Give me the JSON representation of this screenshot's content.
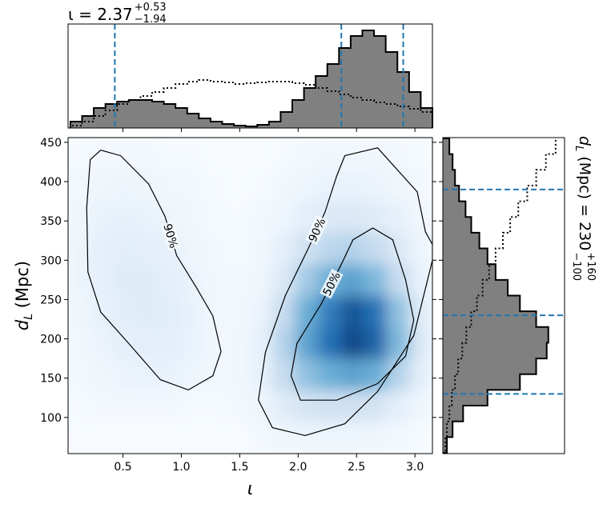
{
  "chart_data": {
    "type": "histogram2d",
    "title": {
      "main": "ι = 2.37",
      "sup": "+0.53",
      "sub": "−1.94"
    },
    "x_label": "ι",
    "y_label": {
      "main": "d",
      "sub": "L",
      "rest": " (Mpc)"
    },
    "right_label": {
      "main": "d",
      "main_sub": "L",
      "rest": " (Mpc) = 230",
      "sup": "+160",
      "sub": "−100"
    },
    "xlim": [
      0.03,
      3.15
    ],
    "ylim": [
      54,
      456
    ],
    "xticks": [
      0.5,
      {
        "value": 1,
        "label": "1.0"
      },
      1.5,
      {
        "value": 2,
        "label": "2.0"
      },
      2.5,
      {
        "value": 3,
        "label": "3.0"
      }
    ],
    "yticks": [
      100,
      150,
      200,
      250,
      300,
      350,
      400,
      450
    ],
    "heatmap": {
      "colors": [
        "#f7fbff",
        "#c6dbef",
        "#6baed6",
        "#2171b5",
        "#08306b"
      ],
      "zlim": [
        0,
        100
      ],
      "x_edges": [
        0.03,
        0.225,
        0.42,
        0.615,
        0.81,
        1.005,
        1.2,
        1.395,
        1.59,
        1.785,
        1.98,
        2.175,
        2.37,
        2.565,
        2.76,
        2.955,
        3.15
      ],
      "y_edges": [
        55,
        95,
        135,
        175,
        215,
        255,
        295,
        335,
        375,
        415,
        455
      ],
      "values": [
        [
          0,
          0,
          0,
          0,
          0,
          0,
          0,
          0,
          2,
          4,
          5,
          5,
          5,
          4,
          2,
          1
        ],
        [
          1,
          2,
          2,
          2,
          2,
          1,
          1,
          2,
          5,
          12,
          18,
          20,
          20,
          18,
          10,
          4
        ],
        [
          2,
          4,
          6,
          7,
          7,
          5,
          3,
          3,
          8,
          25,
          40,
          50,
          55,
          50,
          30,
          10
        ],
        [
          3,
          6,
          9,
          10,
          10,
          7,
          3,
          3,
          8,
          30,
          55,
          75,
          90,
          80,
          45,
          15
        ],
        [
          4,
          8,
          11,
          12,
          11,
          7,
          3,
          2,
          6,
          25,
          50,
          70,
          85,
          75,
          40,
          12
        ],
        [
          5,
          9,
          12,
          12,
          10,
          6,
          2,
          2,
          4,
          15,
          35,
          50,
          55,
          45,
          25,
          8
        ],
        [
          5,
          9,
          11,
          10,
          8,
          4,
          2,
          1,
          3,
          10,
          20,
          28,
          30,
          25,
          15,
          5
        ],
        [
          4,
          7,
          8,
          7,
          5,
          3,
          1,
          1,
          2,
          5,
          10,
          14,
          15,
          12,
          8,
          3
        ],
        [
          3,
          4,
          5,
          4,
          3,
          2,
          1,
          0,
          1,
          3,
          5,
          7,
          7,
          6,
          4,
          2
        ],
        [
          1,
          2,
          2,
          2,
          1,
          1,
          0,
          0,
          0,
          1,
          2,
          3,
          3,
          3,
          2,
          1
        ]
      ]
    },
    "contours": [
      {
        "label": "90%",
        "x": [
          0.31,
          0.48,
          0.72,
          0.86,
          0.96,
          1.13,
          1.27,
          1.34,
          1.27,
          1.06,
          0.82,
          0.55,
          0.31,
          0.2,
          0.19,
          0.22
        ],
        "y": [
          440,
          433,
          397,
          356,
          306,
          265,
          229,
          184,
          153,
          135,
          148,
          194,
          234,
          285,
          367,
          428
        ]
      },
      {
        "label": "90%",
        "x": [
          2.4,
          2.68,
          3.02,
          3.09,
          3.15,
          3.15,
          2.99,
          2.68,
          2.4,
          2.06,
          1.78,
          1.66,
          1.72,
          1.89,
          2.09,
          2.23,
          2.33
        ],
        "y": [
          433,
          443,
          387,
          336,
          320,
          300,
          204,
          133,
          92,
          77,
          87,
          122,
          183,
          255,
          316,
          361,
          407
        ]
      },
      {
        "label": "50%",
        "x": [
          2.64,
          2.81,
          2.92,
          2.99,
          2.92,
          2.68,
          2.33,
          2.02,
          1.94,
          1.99,
          2.2,
          2.37,
          2.47
        ],
        "y": [
          341,
          326,
          275,
          224,
          178,
          143,
          122,
          122,
          153,
          194,
          245,
          295,
          326
        ]
      }
    ],
    "top_hist": {
      "color": "#808080",
      "lim": [
        0,
        130
      ],
      "bins": [
        0.05,
        0.15,
        0.25,
        0.35,
        0.45,
        0.55,
        0.65,
        0.75,
        0.85,
        0.95,
        1.05,
        1.15,
        1.25,
        1.35,
        1.45,
        1.55,
        1.65,
        1.75,
        1.85,
        1.95,
        2.05,
        2.15,
        2.25,
        2.35,
        2.45,
        2.55,
        2.65,
        2.75,
        2.85,
        2.95,
        3.05,
        3.15
      ],
      "counts": [
        8,
        15,
        25,
        30,
        33,
        35,
        35,
        33,
        30,
        25,
        18,
        12,
        8,
        5,
        3,
        2,
        4,
        8,
        20,
        35,
        50,
        65,
        80,
        100,
        115,
        122,
        115,
        95,
        70,
        45,
        25
      ],
      "prior": [
        3,
        8,
        15,
        22,
        30,
        35,
        40,
        45,
        50,
        55,
        58,
        60,
        58,
        57,
        55,
        56,
        57,
        58,
        58,
        56,
        54,
        50,
        46,
        42,
        38,
        35,
        32,
        30,
        27,
        24,
        20
      ],
      "quantiles": [
        0.43,
        2.37,
        2.9
      ],
      "quantile_color": "#1f77b4"
    },
    "right_hist": {
      "color": "#808080",
      "lim": [
        0,
        150
      ],
      "bins": [
        55,
        75,
        95,
        115,
        135,
        155,
        175,
        195,
        215,
        235,
        255,
        275,
        295,
        315,
        335,
        355,
        375,
        395,
        415,
        435,
        455
      ],
      "counts": [
        5,
        12,
        25,
        55,
        95,
        115,
        128,
        130,
        115,
        95,
        80,
        65,
        55,
        45,
        35,
        28,
        20,
        15,
        12,
        8
      ],
      "prior": [
        3,
        5,
        8,
        11,
        15,
        19,
        24,
        29,
        35,
        42,
        49,
        57,
        65,
        74,
        83,
        93,
        104,
        115,
        127,
        139
      ],
      "quantiles": [
        130,
        230,
        390
      ],
      "quantile_color": "#1f77b4"
    }
  }
}
